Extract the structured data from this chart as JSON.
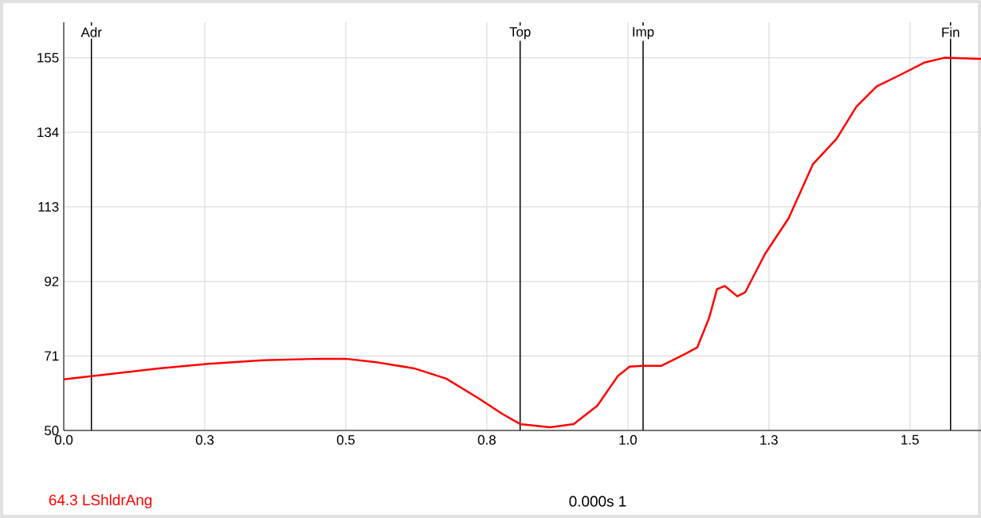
{
  "chart_data": {
    "type": "line",
    "x": [
      0,
      0.049,
      0.169,
      0.251,
      0.353,
      0.452,
      0.5,
      0.551,
      0.621,
      0.678,
      0.734,
      0.777,
      0.809,
      0.862,
      0.904,
      0.946,
      0.982,
      1.003,
      1.027,
      1.059,
      1.102,
      1.123,
      1.144,
      1.158,
      1.172,
      1.194,
      1.208,
      1.243,
      1.285,
      1.328,
      1.37,
      1.405,
      1.441,
      1.483,
      1.525,
      1.561,
      1.626
    ],
    "series": [
      {
        "color": "#ff0000",
        "values": [
          64.4,
          65.3,
          67.5,
          68.7,
          69.8,
          70.2,
          70.2,
          69.3,
          67.5,
          64.6,
          59.2,
          54.7,
          51.8,
          50.9,
          51.8,
          57.0,
          65.3,
          68.0,
          68.2,
          68.2,
          71.6,
          73.4,
          81.7,
          89.8,
          90.7,
          87.8,
          88.9,
          99.7,
          109.8,
          125.0,
          132.2,
          141.2,
          146.9,
          150.2,
          153.6,
          155.0,
          154.7
        ]
      }
    ],
    "xlim": [
      0,
      1.626
    ],
    "ylim": [
      50,
      165
    ],
    "xticks": [
      {
        "value": 0,
        "label": "0.0"
      },
      {
        "value": 0.25,
        "label": "0.3"
      },
      {
        "value": 0.5,
        "label": "0.5"
      },
      {
        "value": 0.75,
        "label": "0.8"
      },
      {
        "value": 1.0,
        "label": "1.0"
      },
      {
        "value": 1.25,
        "label": "1.3"
      },
      {
        "value": 1.5,
        "label": "1.5"
      }
    ],
    "yticks": [
      50,
      71,
      92,
      113,
      134,
      155
    ],
    "grid": true,
    "marker": "none",
    "line_style": "solid",
    "ref_lines": [
      {
        "axis": "x",
        "value": 0.049,
        "label": "Adr",
        "color": "#000000"
      },
      {
        "axis": "x",
        "value": 0.809,
        "label": "Top",
        "color": "#000000"
      },
      {
        "axis": "x",
        "value": 1.027,
        "label": "Imp",
        "color": "#000000"
      },
      {
        "axis": "x",
        "value": 1.572,
        "label": "Fin",
        "color": "#000000"
      }
    ],
    "annotations": [
      "64.3 LShldrAng",
      "0.000s  1"
    ]
  }
}
